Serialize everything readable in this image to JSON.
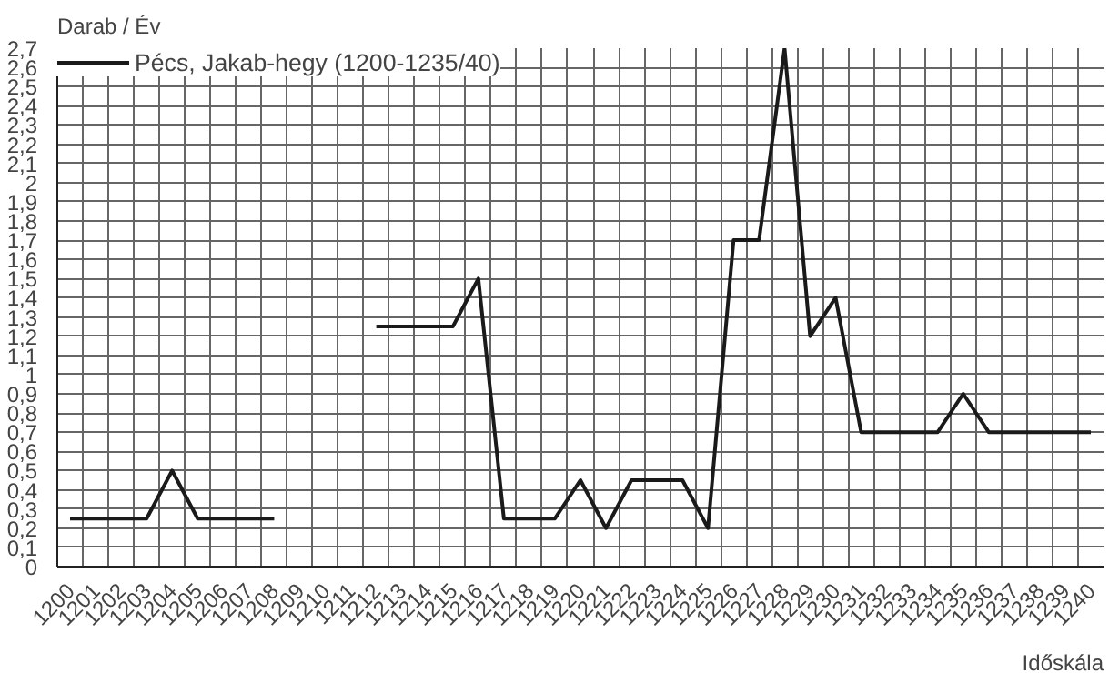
{
  "chart_data": {
    "type": "line",
    "title": null,
    "ylabel": "Darab / Év",
    "xlabel": "Időskála",
    "categories": [
      "1200",
      "1201",
      "1202",
      "1203",
      "1204",
      "1205",
      "1206",
      "1207",
      "1208",
      "1209",
      "1210",
      "1211",
      "1212",
      "1213",
      "1214",
      "1215",
      "1216",
      "1217",
      "1218",
      "1219",
      "1220",
      "1221",
      "1222",
      "1223",
      "1224",
      "1225",
      "1226",
      "1227",
      "1228",
      "1229",
      "1230",
      "1231",
      "1232",
      "1233",
      "1234",
      "1235",
      "1236",
      "1237",
      "1238",
      "1239",
      "1240"
    ],
    "series": [
      {
        "name": "Pécs, Jakab-hegy (1200-1235/40)",
        "color": "#1a1a1a",
        "values": [
          0.25,
          0.25,
          0.25,
          0.25,
          0.5,
          0.25,
          0.25,
          0.25,
          0.25,
          null,
          null,
          null,
          1.25,
          1.25,
          1.25,
          1.25,
          1.5,
          0.25,
          0.25,
          0.25,
          0.45,
          0.2,
          0.45,
          0.45,
          0.45,
          0.2,
          1.7,
          1.7,
          2.7,
          1.2,
          1.4,
          0.7,
          0.7,
          0.7,
          0.7,
          0.9,
          0.7,
          0.7,
          0.7,
          0.7,
          0.7
        ]
      }
    ],
    "ylim": [
      0,
      2.7
    ],
    "yticks": [
      0,
      {
        "value": 0.1,
        "label": "0,1"
      },
      {
        "value": 0.2,
        "label": "0,2"
      },
      {
        "value": 0.3,
        "label": "0,3"
      },
      {
        "value": 0.4,
        "label": "0,4"
      },
      {
        "value": 0.5,
        "label": "0,5"
      },
      {
        "value": 0.6,
        "label": "0,6"
      },
      {
        "value": 0.7,
        "label": "0,7"
      },
      {
        "value": 0.8,
        "label": "0,8"
      },
      {
        "value": 0.9,
        "label": "0,9"
      },
      1,
      {
        "value": 1.1,
        "label": "1,1"
      },
      {
        "value": 1.2,
        "label": "1,2"
      },
      {
        "value": 1.3,
        "label": "1,3"
      },
      {
        "value": 1.4,
        "label": "1,4"
      },
      {
        "value": 1.5,
        "label": "1,5"
      },
      {
        "value": 1.6,
        "label": "1,6"
      },
      {
        "value": 1.7,
        "label": "1,7"
      },
      {
        "value": 1.8,
        "label": "1,8"
      },
      {
        "value": 1.9,
        "label": "1,9"
      },
      2,
      {
        "value": 2.1,
        "label": "2,1"
      },
      {
        "value": 2.2,
        "label": "2,2"
      },
      {
        "value": 2.3,
        "label": "2,3"
      },
      {
        "value": 2.4,
        "label": "2,4"
      },
      {
        "value": 2.5,
        "label": "2,5"
      },
      {
        "value": 2.6,
        "label": "2,6"
      },
      {
        "value": 2.7,
        "label": "2,7"
      }
    ],
    "grid": true,
    "legend": "top left",
    "marker": "none",
    "line_style": "solid"
  }
}
